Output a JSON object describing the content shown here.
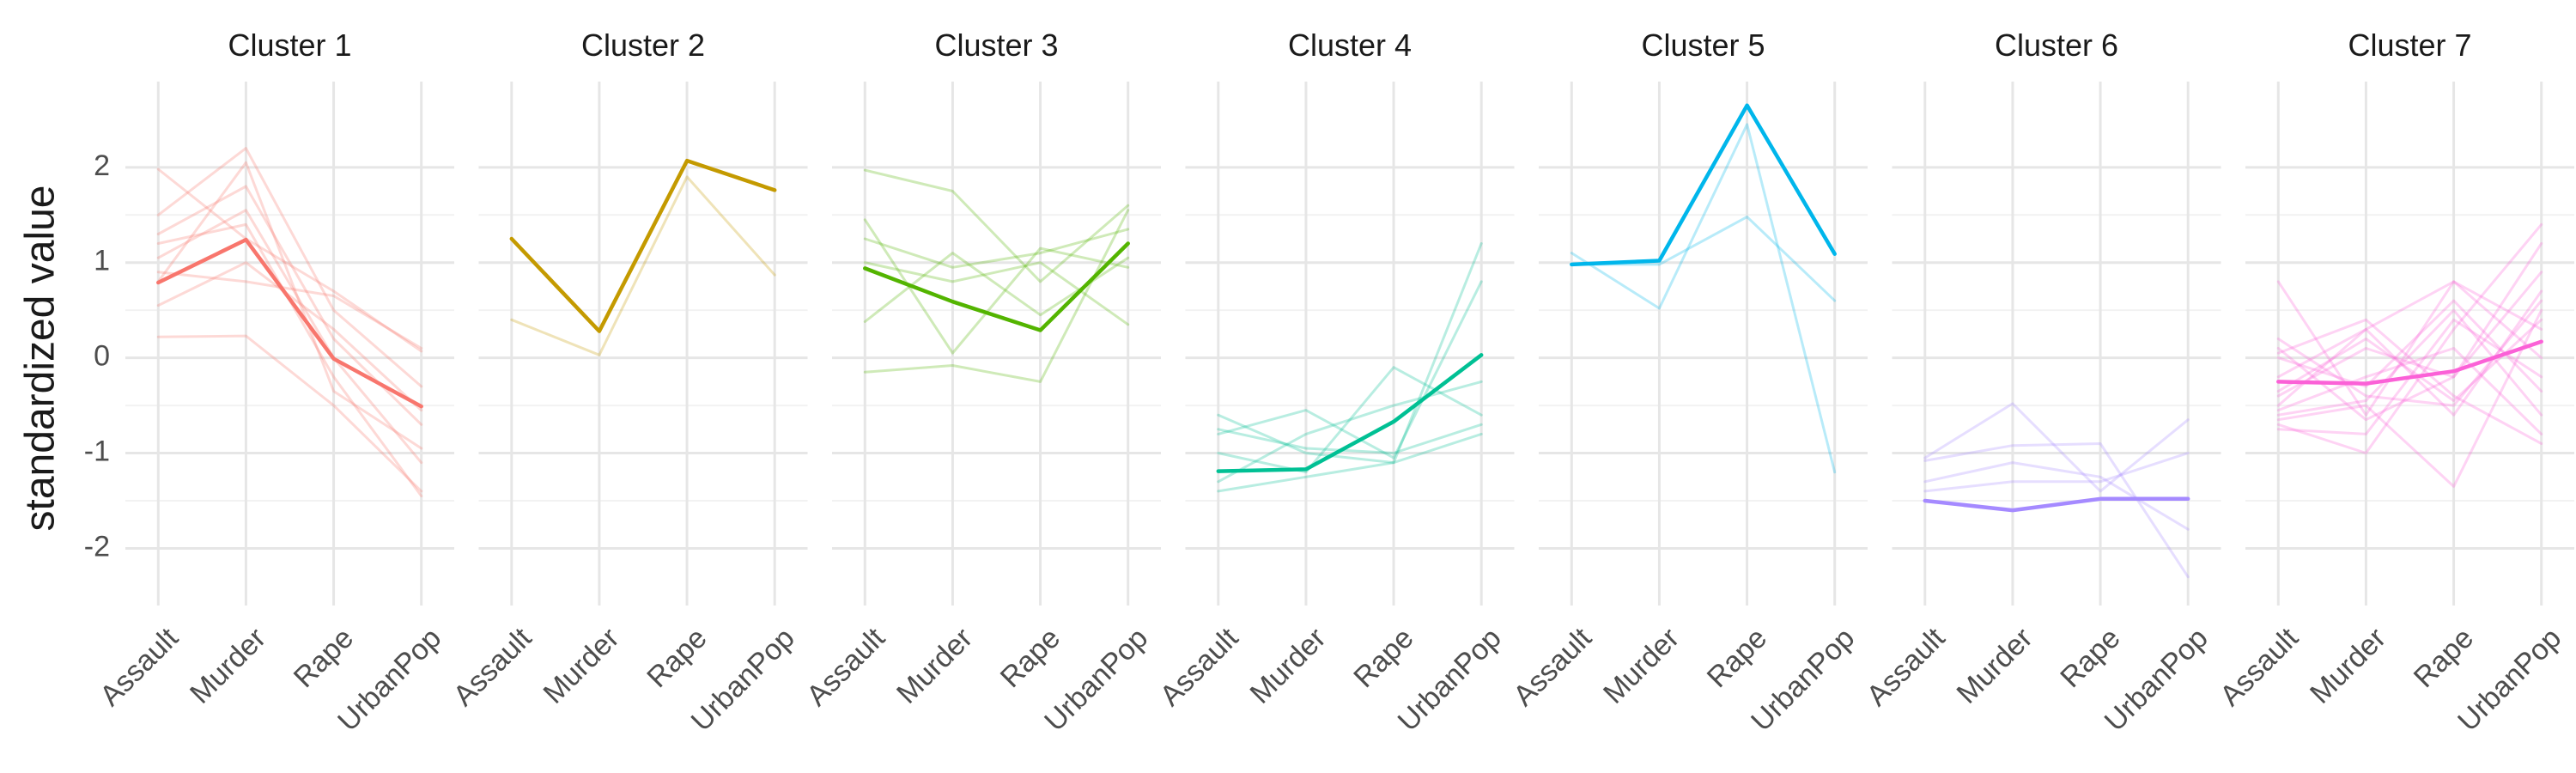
{
  "chart_data": {
    "type": "line",
    "subtype": "faceted-parallel-coordinates",
    "ylabel": "standardized value",
    "ylim": [
      -2.6,
      2.9
    ],
    "yticks": [
      -2,
      -1,
      0,
      1,
      2
    ],
    "yticks_labels": [
      "-2",
      "-1",
      "0",
      "1",
      "2"
    ],
    "x": [
      "Assault",
      "Murder",
      "Rape",
      "UrbanPop"
    ],
    "grid": true,
    "legend": "none",
    "panels": [
      {
        "title": "Cluster 1",
        "color": "#F8766D",
        "centroid": [
          0.79,
          1.24,
          -0.01,
          -0.51
        ],
        "members": [
          [
            1.98,
            1.25,
            0.7,
            0.07
          ],
          [
            1.5,
            2.2,
            0.5,
            -0.3
          ],
          [
            1.3,
            1.8,
            0.2,
            -0.7
          ],
          [
            1.05,
            1.55,
            0.0,
            -1.1
          ],
          [
            0.9,
            0.8,
            0.65,
            0.1
          ],
          [
            0.22,
            0.23,
            -0.5,
            -1.4
          ],
          [
            0.55,
            1.0,
            0.3,
            -0.55
          ],
          [
            1.2,
            1.4,
            -0.2,
            -1.45
          ],
          [
            0.8,
            2.05,
            -0.35,
            -0.95
          ]
        ]
      },
      {
        "title": "Cluster 2",
        "color": "#C49A00",
        "centroid": [
          1.25,
          0.28,
          2.07,
          1.76
        ],
        "members": [
          [
            0.4,
            0.03,
            1.9,
            0.87
          ]
        ]
      },
      {
        "title": "Cluster 3",
        "color": "#53B400",
        "centroid": [
          0.94,
          0.59,
          0.29,
          1.2
        ],
        "members": [
          [
            1.97,
            1.75,
            0.8,
            1.6
          ],
          [
            1.45,
            0.05,
            1.15,
            0.95
          ],
          [
            0.38,
            1.1,
            0.45,
            1.05
          ],
          [
            -0.15,
            -0.08,
            -0.25,
            1.55
          ],
          [
            1.0,
            0.8,
            1.0,
            0.35
          ],
          [
            1.25,
            0.95,
            1.1,
            1.35
          ]
        ]
      },
      {
        "title": "Cluster 4",
        "color": "#00C094",
        "centroid": [
          -1.19,
          -1.17,
          -0.67,
          0.03
        ],
        "members": [
          [
            -0.6,
            -1.0,
            -1.1,
            1.2
          ],
          [
            -1.0,
            -1.2,
            -0.1,
            -0.6
          ],
          [
            -0.8,
            -0.55,
            -1.05,
            0.8
          ],
          [
            -1.4,
            -1.25,
            -1.1,
            -0.8
          ],
          [
            -1.3,
            -0.8,
            -0.5,
            -0.25
          ],
          [
            -0.75,
            -0.95,
            -1.0,
            -0.7
          ]
        ]
      },
      {
        "title": "Cluster 5",
        "color": "#00B6EB",
        "centroid": [
          0.98,
          1.02,
          2.65,
          1.09
        ],
        "members": [
          [
            1.1,
            0.52,
            2.45,
            -1.2
          ],
          [
            0.98,
            0.98,
            1.48,
            0.6
          ]
        ]
      },
      {
        "title": "Cluster 6",
        "color": "#A58AFF",
        "centroid": [
          -1.5,
          -1.6,
          -1.48,
          -1.48
        ],
        "members": [
          [
            -1.05,
            -0.48,
            -1.4,
            -0.65
          ],
          [
            -1.3,
            -1.1,
            -1.25,
            -1.8
          ],
          [
            -1.4,
            -1.3,
            -1.3,
            -1.0
          ],
          [
            -1.08,
            -0.92,
            -0.9,
            -2.3
          ]
        ]
      },
      {
        "title": "Cluster 7",
        "color": "#FB61D7",
        "centroid": [
          -0.25,
          -0.27,
          -0.14,
          0.17
        ],
        "members": [
          [
            0.8,
            -0.6,
            0.8,
            0.3
          ],
          [
            0.05,
            0.4,
            -0.4,
            -0.9
          ],
          [
            -0.7,
            -1.0,
            0.3,
            1.4
          ],
          [
            -0.5,
            0.3,
            -0.6,
            0.7
          ],
          [
            -0.65,
            -0.5,
            -1.35,
            0.5
          ],
          [
            0.0,
            -0.3,
            0.6,
            -0.35
          ],
          [
            -0.4,
            0.1,
            -0.2,
            1.2
          ],
          [
            -0.75,
            -0.8,
            0.4,
            -0.2
          ],
          [
            0.2,
            -0.4,
            -0.5,
            0.6
          ],
          [
            -0.2,
            0.3,
            0.8,
            0.0
          ],
          [
            -0.55,
            -0.2,
            0.1,
            -0.8
          ],
          [
            0.1,
            -0.65,
            -0.2,
            0.9
          ],
          [
            -0.35,
            0.2,
            -0.45,
            0.4
          ],
          [
            -0.6,
            -0.45,
            0.5,
            -0.6
          ]
        ]
      }
    ]
  }
}
